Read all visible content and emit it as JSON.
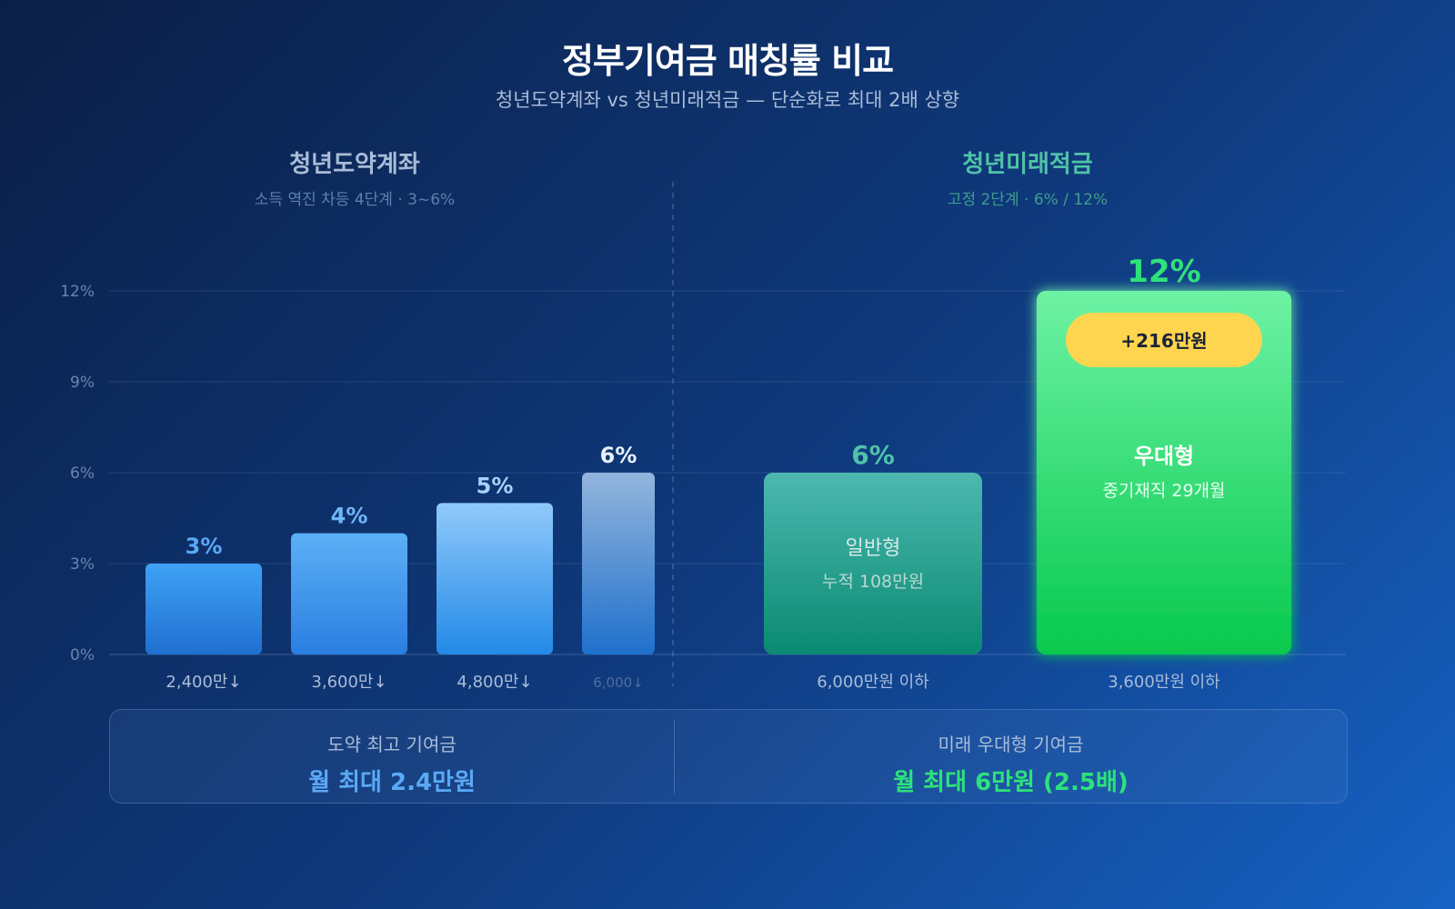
{
  "title": "정부기여금 매칭률 비교",
  "subtitle": "청년도약계좌 vs 청년미래적금 — 단순화로 최대 2배 상향",
  "left_section": {
    "title": "청년도약계좌",
    "subtitle": "소득 역진 차등 4단계 · 3~6%"
  },
  "right_section": {
    "title": "청년미래적금",
    "subtitle": "고정 2단계 · 6% / 12%"
  },
  "colors": {
    "accent_blue": "#5aa9f5",
    "accent_teal": "#4fc3a8",
    "accent_green": "#2ee27a",
    "badge": "#ffd54f"
  },
  "chart_data": {
    "type": "bar",
    "ylim": [
      0,
      15
    ],
    "y_ticks": [
      "0%",
      "3%",
      "6%",
      "9%",
      "12%"
    ],
    "y_tick_values": [
      0,
      3,
      6,
      9,
      12
    ],
    "grid": true,
    "groups": [
      {
        "name": "청년도약계좌",
        "categories": [
          "2,400만↓",
          "3,600만↓",
          "4,800만↓",
          "6,000↓"
        ],
        "values": [
          3,
          4,
          5,
          6
        ],
        "value_labels": [
          "3%",
          "4%",
          "5%",
          "6%"
        ]
      },
      {
        "name": "청년미래적금",
        "categories": [
          "6,000만원 이하",
          "3,600만원 이하"
        ],
        "values": [
          6,
          12
        ],
        "value_labels": [
          "6%",
          "12%"
        ],
        "bar_names": [
          "일반형",
          "우대형"
        ],
        "bar_notes": [
          "누적 108만원",
          "중기재직 29개월"
        ]
      }
    ],
    "badge": "+216만원"
  },
  "summary": {
    "left": {
      "label": "도약 최고 기여금",
      "value": "월 최대 2.4만원"
    },
    "right": {
      "label": "미래 우대형 기여금",
      "value": "월 최대 6만원 (2.5배)"
    }
  }
}
